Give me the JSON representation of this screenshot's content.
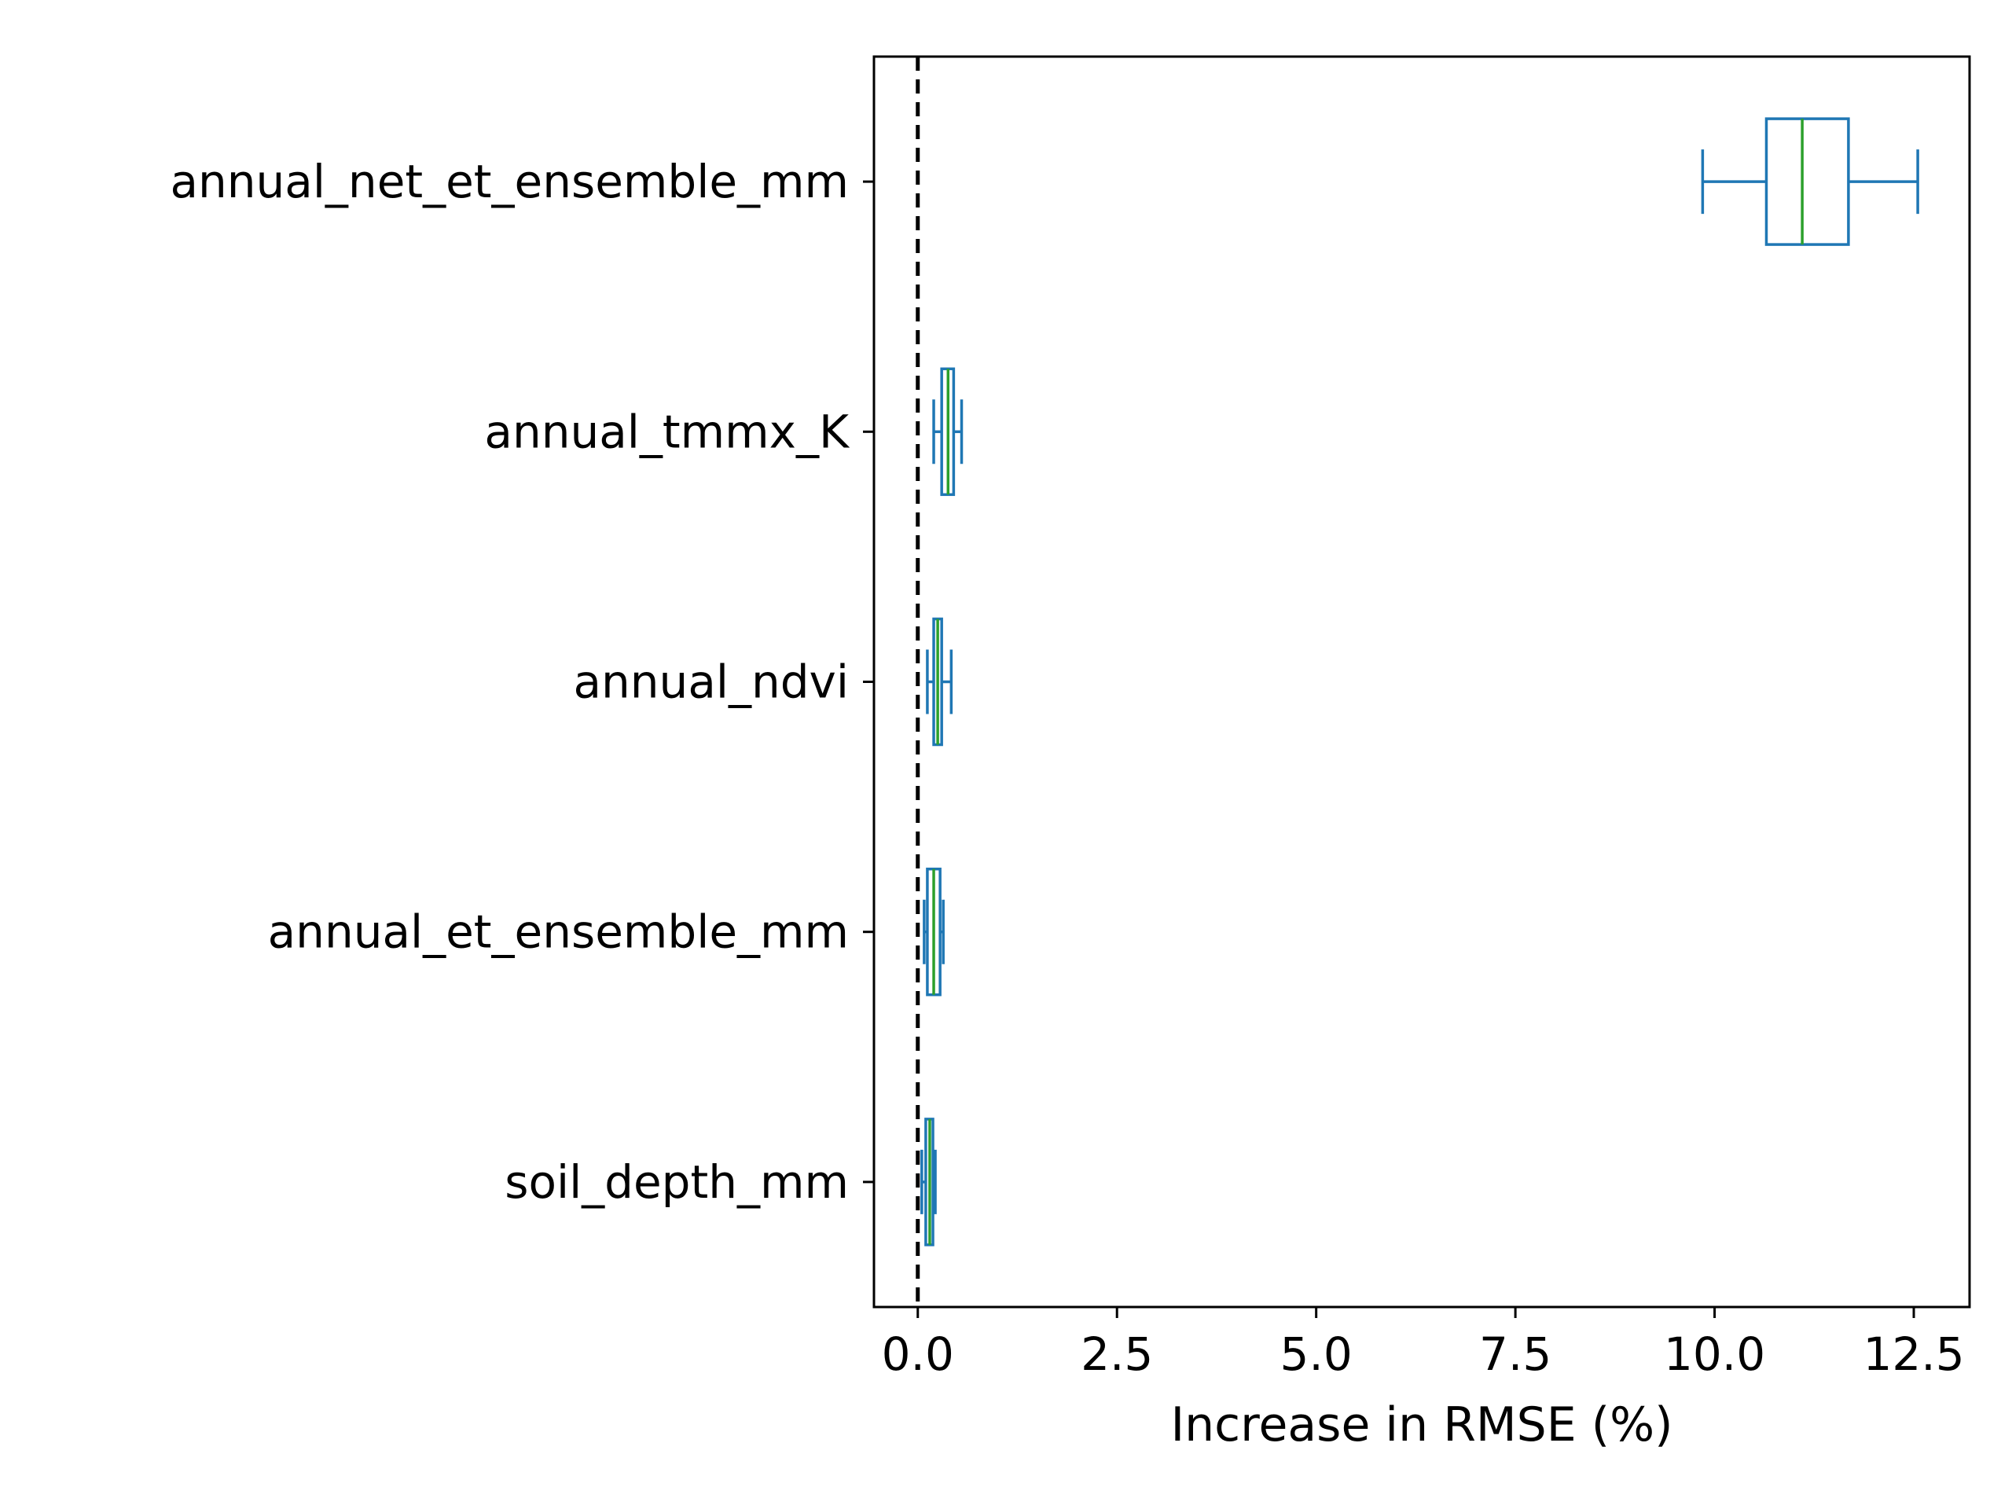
{
  "chart_data": {
    "type": "boxplot",
    "orientation": "horizontal",
    "title": "",
    "xlabel": "Increase in RMSE (%)",
    "ylabel": "",
    "xlim": [
      -0.55,
      13.2
    ],
    "xticks": [
      0.0,
      2.5,
      5.0,
      7.5,
      10.0,
      12.5
    ],
    "xtick_labels": [
      "0.0",
      "2.5",
      "5.0",
      "7.5",
      "10.0",
      "12.5"
    ],
    "grid": false,
    "reference_line": {
      "x": 0.0,
      "style": "dashed",
      "color": "#000000"
    },
    "colors": {
      "box": "#1f77b4",
      "median": "#2ca02c"
    },
    "categories": [
      "annual_net_et_ensemble_mm",
      "annual_tmmx_K",
      "annual_ndvi",
      "annual_et_ensemble_mm",
      "soil_depth_mm"
    ],
    "boxes": [
      {
        "label": "annual_net_et_ensemble_mm",
        "whislo": 9.85,
        "q1": 10.65,
        "med": 11.1,
        "q3": 11.68,
        "whishi": 12.55
      },
      {
        "label": "annual_tmmx_K",
        "whislo": 0.2,
        "q1": 0.3,
        "med": 0.38,
        "q3": 0.45,
        "whishi": 0.55
      },
      {
        "label": "annual_ndvi",
        "whislo": 0.12,
        "q1": 0.2,
        "med": 0.25,
        "q3": 0.3,
        "whishi": 0.42
      },
      {
        "label": "annual_et_ensemble_mm",
        "whislo": 0.08,
        "q1": 0.12,
        "med": 0.2,
        "q3": 0.28,
        "whishi": 0.32
      },
      {
        "label": "soil_depth_mm",
        "whislo": 0.05,
        "q1": 0.1,
        "med": 0.15,
        "q3": 0.19,
        "whishi": 0.22
      }
    ]
  }
}
